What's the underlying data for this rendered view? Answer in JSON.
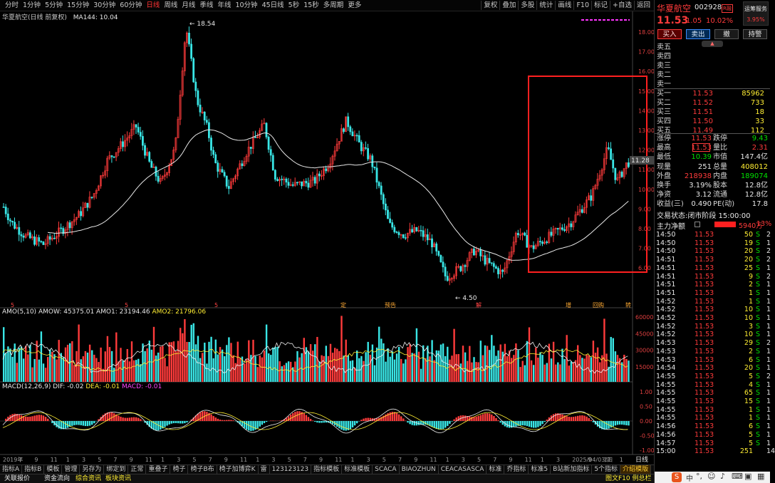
{
  "topbar": {
    "periods": [
      "分时",
      "1分钟",
      "5分钟",
      "15分钟",
      "30分钟",
      "60分钟",
      "日线",
      "周线",
      "月线",
      "季线",
      "年线",
      "10分钟",
      "45日线",
      "5秒",
      "15秒",
      "多周期",
      "更多"
    ],
    "active_period": "日线",
    "tools": [
      "复权",
      "叠加",
      "多股",
      "统计",
      "画线",
      "F10",
      "标记",
      "+自选",
      "返回"
    ]
  },
  "chart": {
    "title": "华夏航空(日线 前复权)",
    "ma_label": "MA144: 10.04",
    "high_label": "18.54",
    "low_label": "4.50",
    "last_price_tag": "11.28",
    "y_ticks": [
      "18.00",
      "17.00",
      "16.00",
      "15.00",
      "14.00",
      "13.00",
      "12.00",
      "11.00",
      "10.00",
      "9.00",
      "8.00",
      "7.00",
      "6.00"
    ],
    "events": [
      "5",
      "5",
      "5",
      "定",
      "预告",
      "解",
      "增",
      "回购",
      "转"
    ],
    "highlight_box_color": "#ff2020"
  },
  "volume": {
    "legend": [
      "AMO(5,10)",
      "AMOW: 45375.01",
      "AMO1: 23194.46",
      "AMO2: 21796.06"
    ],
    "y_ticks": [
      "60000",
      "45000",
      "30000",
      "15000"
    ]
  },
  "macd": {
    "legend": [
      "MACD(12,26,9)",
      "DIF: -0.02",
      "DEA: -0.01",
      "MACD: -0.01"
    ],
    "y_ticks": [
      "1.00",
      "0.50",
      "0.00",
      "-0.50",
      "-1.00"
    ]
  },
  "x_axis": {
    "labels": [
      "2019年",
      "7",
      "9",
      "11",
      "1",
      "3",
      "5",
      "7",
      "9",
      "11",
      "1",
      "3",
      "5",
      "7",
      "9",
      "11",
      "1",
      "3",
      "5",
      "7",
      "9",
      "11",
      "1",
      "3",
      "5",
      "7",
      "9",
      "11",
      "1",
      "3",
      "5",
      "7",
      "9",
      "11",
      "1",
      "3",
      "2025/04/03/四",
      "9",
      "11",
      "1"
    ],
    "right_label": "日线"
  },
  "bottom_tabs": [
    "指标A",
    "指标B",
    "模板",
    "管理",
    "另存为",
    "绑定到",
    "正常",
    "重叠子",
    "椅子",
    "椅子B布",
    "椅子加博弈K",
    "雷",
    "123123123",
    "指标模板",
    "标准模板",
    "SCACA",
    "BIAOZHUN",
    "CEACASASCA",
    "标准",
    "乔指标",
    "标准5",
    "B站新加指标",
    "5个指标",
    "介绍模版"
  ],
  "bottom_tabs_active": "介绍模版",
  "statusbar": {
    "left": [
      "关联报价",
      "资金流向",
      "综合资讯",
      "板块资讯"
    ],
    "right_text": "图文F10 例总栏 《"
  },
  "quote": {
    "name": "华夏航空",
    "code": "002928",
    "tag": "R融",
    "service": "运筹服务",
    "service_pct": "3.95%",
    "price": "11.53",
    "change": "1.05",
    "change_pct": "10.02%",
    "buttons": [
      "买入",
      "卖出",
      "撤",
      "持警"
    ],
    "sell_levels": [
      {
        "label": "卖五",
        "price": "",
        "vol": ""
      },
      {
        "label": "卖四",
        "price": "",
        "vol": ""
      },
      {
        "label": "卖三",
        "price": "",
        "vol": ""
      },
      {
        "label": "卖二",
        "price": "",
        "vol": ""
      },
      {
        "label": "卖一",
        "price": "",
        "vol": ""
      }
    ],
    "buy_levels": [
      {
        "label": "买一",
        "price": "11.53",
        "vol": "85962"
      },
      {
        "label": "买二",
        "price": "11.52",
        "vol": "733"
      },
      {
        "label": "买三",
        "price": "11.51",
        "vol": "18"
      },
      {
        "label": "买四",
        "price": "11.50",
        "vol": "33"
      },
      {
        "label": "买五",
        "price": "11.49",
        "vol": "112"
      }
    ],
    "stats": [
      {
        "k1": "涨停",
        "v1": "11.53",
        "k2": "跌停",
        "v2": "9.43",
        "c1": "red",
        "c2": "green"
      },
      {
        "k1": "最高",
        "v1": "11.53",
        "k2": "量比",
        "v2": "2.31",
        "c1": "red",
        "c2": "red"
      },
      {
        "k1": "最低",
        "v1": "10.39",
        "k2": "市值",
        "v2": "147.4亿",
        "c1": "green",
        "c2": "white"
      },
      {
        "k1": "现量",
        "v1": "251",
        "k2": "总量",
        "v2": "408012",
        "c1": "white",
        "c2": "yellow"
      },
      {
        "k1": "外盘",
        "v1": "218938",
        "k2": "内盘",
        "v2": "189074",
        "c1": "red",
        "c2": "green"
      },
      {
        "k1": "换手",
        "v1": "3.19%",
        "k2": "股本",
        "v2": "12.8亿",
        "c1": "white",
        "c2": "white"
      },
      {
        "k1": "净资",
        "v1": "3.12",
        "k2": "流通",
        "v2": "12.8亿",
        "c1": "white",
        "c2": "white"
      },
      {
        "k1": "收益(三)",
        "v1": "0.490",
        "k2": "PE(动)",
        "v2": "17.8",
        "c1": "white",
        "c2": "white"
      }
    ],
    "trade_status_label": "交易状态:",
    "trade_status": "闭市阶段 15:00:00",
    "main_flow_label": "主力净额",
    "main_flow": "5940万",
    "main_flow_pct": "13%"
  },
  "ticks": [
    {
      "t": "14:50",
      "p": "11.53",
      "v": "50",
      "s": "S",
      "n": "2"
    },
    {
      "t": "14:50",
      "p": "11.53",
      "v": "19",
      "s": "S",
      "n": "1"
    },
    {
      "t": "14:50",
      "p": "11.53",
      "v": "20",
      "s": "S",
      "n": "2"
    },
    {
      "t": "14:51",
      "p": "11.53",
      "v": "20",
      "s": "S",
      "n": "2"
    },
    {
      "t": "14:51",
      "p": "11.53",
      "v": "25",
      "s": "S",
      "n": "1"
    },
    {
      "t": "14:51",
      "p": "11.53",
      "v": "9",
      "s": "S",
      "n": "2"
    },
    {
      "t": "14:51",
      "p": "11.53",
      "v": "2",
      "s": "S",
      "n": "1"
    },
    {
      "t": "14:51",
      "p": "11.53",
      "v": "1",
      "s": "S",
      "n": "1"
    },
    {
      "t": "14:52",
      "p": "11.53",
      "v": "1",
      "s": "S",
      "n": "1"
    },
    {
      "t": "14:52",
      "p": "11.53",
      "v": "10",
      "s": "S",
      "n": "1"
    },
    {
      "t": "14:52",
      "p": "11.53",
      "v": "10",
      "s": "S",
      "n": "1"
    },
    {
      "t": "14:52",
      "p": "11.53",
      "v": "3",
      "s": "S",
      "n": "1"
    },
    {
      "t": "14:52",
      "p": "11.53",
      "v": "10",
      "s": "S",
      "n": "1"
    },
    {
      "t": "14:53",
      "p": "11.53",
      "v": "29",
      "s": "S",
      "n": "2"
    },
    {
      "t": "14:53",
      "p": "11.53",
      "v": "2",
      "s": "S",
      "n": "1"
    },
    {
      "t": "14:53",
      "p": "11.53",
      "v": "6",
      "s": "S",
      "n": "1"
    },
    {
      "t": "14:54",
      "p": "11.53",
      "v": "20",
      "s": "S",
      "n": "1"
    },
    {
      "t": "14:55",
      "p": "11.53",
      "v": "5",
      "s": "S",
      "n": "2"
    },
    {
      "t": "14:55",
      "p": "11.53",
      "v": "4",
      "s": "S",
      "n": "1"
    },
    {
      "t": "14:55",
      "p": "11.53",
      "v": "65",
      "s": "S",
      "n": "1"
    },
    {
      "t": "14:55",
      "p": "11.53",
      "v": "15",
      "s": "S",
      "n": "1"
    },
    {
      "t": "14:55",
      "p": "11.53",
      "v": "1",
      "s": "S",
      "n": "1"
    },
    {
      "t": "14:55",
      "p": "11.53",
      "v": "1",
      "s": "S",
      "n": "1"
    },
    {
      "t": "14:56",
      "p": "11.53",
      "v": "6",
      "s": "S",
      "n": "1"
    },
    {
      "t": "14:56",
      "p": "11.53",
      "v": "5",
      "s": "S",
      "n": "1"
    },
    {
      "t": "14:57",
      "p": "11.53",
      "v": "5",
      "s": "S",
      "n": "1"
    },
    {
      "t": "15:00",
      "p": "11.53",
      "v": "251",
      "s": "",
      "n": "14"
    }
  ],
  "colors": {
    "up": "#ff3b3b",
    "down": "#39e6e6",
    "ma": "#e8e8e8",
    "dif": "#f0f0f0",
    "dea": "#ffee33"
  }
}
